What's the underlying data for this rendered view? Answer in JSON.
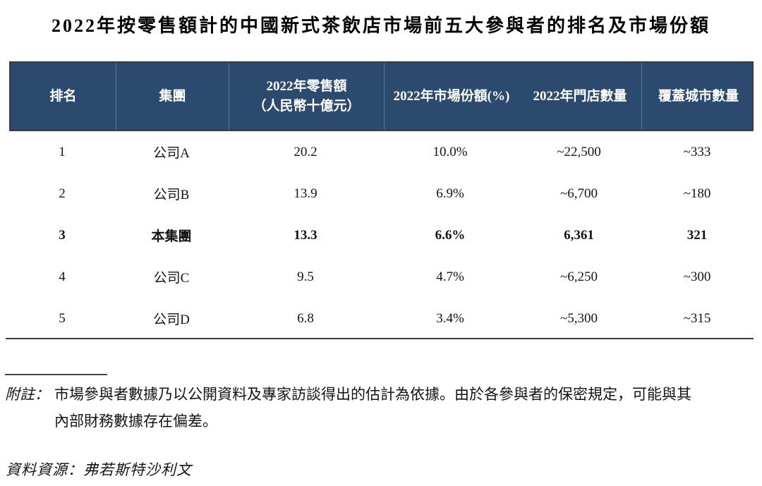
{
  "title": "2022年按零售額計的中國新式茶飲店市場前五大參與者的排名及市場份額",
  "colors": {
    "header_bg": "#2C4A6E",
    "header_text": "#FFFFFF",
    "body_text": "#141414"
  },
  "table": {
    "headers": [
      "排名",
      "集團",
      "2022年零售額\n（人民幣十億元）",
      "2022年市場份額(%)",
      "2022年門店數量",
      "覆蓋城市數量"
    ],
    "rows": [
      {
        "rank": "1",
        "group": "公司A",
        "retail": "20.2",
        "share": "10.0%",
        "stores": "~22,500",
        "cities": "~333"
      },
      {
        "rank": "2",
        "group": "公司B",
        "retail": "13.9",
        "share": "6.9%",
        "stores": "~6,700",
        "cities": "~180"
      },
      {
        "rank": "3",
        "group": "本集團",
        "retail": "13.3",
        "share": "6.6%",
        "stores": "6,361",
        "cities": "321"
      },
      {
        "rank": "4",
        "group": "公司C",
        "retail": "9.5",
        "share": "4.7%",
        "stores": "~6,250",
        "cities": "~300"
      },
      {
        "rank": "5",
        "group": "公司D",
        "retail": "6.8",
        "share": "3.4%",
        "stores": "~5,300",
        "cities": "~315"
      }
    ]
  },
  "footnote": {
    "label": "附註：",
    "lines": [
      "市場參與者數據乃以公開資料及專家訪談得出的估計為依據。由於各參與者的保密規定，可能與其",
      "內部財務數據存在偏差。"
    ]
  },
  "source": "資料資源：弗若斯特沙利文"
}
